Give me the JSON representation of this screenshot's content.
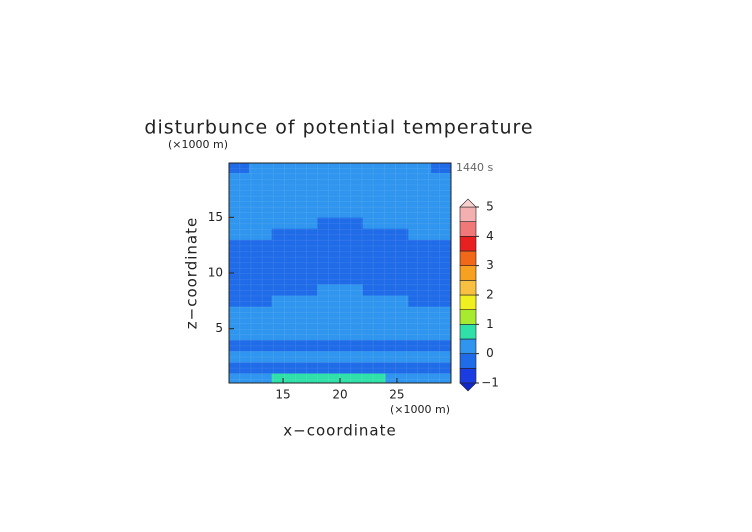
{
  "chart_data": {
    "type": "contour",
    "title": "disturbunce of potential temperature",
    "x_label": "x−coordinate",
    "y_label": "z−coordinate",
    "x_unit": "(×1000 m)",
    "y_unit": "(×1000 m)",
    "time_label": "1440 s",
    "xlim": [
      10.25,
      29.75
    ],
    "ylim": [
      0.125,
      19.875
    ],
    "xticks": [
      15,
      20,
      25
    ],
    "yticks": [
      5,
      10,
      15
    ],
    "x": [
      11,
      13,
      15,
      17,
      19,
      21,
      23,
      25,
      27,
      29
    ],
    "y": [
      0.5,
      1.5,
      2.5,
      3.5,
      4.5,
      5.5,
      6.5,
      7.5,
      8.5,
      9.5,
      10.5,
      11.5,
      12.5,
      13.5,
      14.5,
      15.5,
      16.5,
      17.5,
      18.5,
      19.5
    ],
    "z": [
      [
        0.2,
        0.2,
        0.8,
        0.8,
        0.8,
        0.8,
        0.8,
        0.2,
        0.2,
        0.2
      ],
      [
        -0.2,
        -0.2,
        -0.2,
        -0.2,
        -0.2,
        -0.2,
        -0.2,
        -0.2,
        -0.2,
        -0.2
      ],
      [
        0.2,
        0.2,
        0.2,
        0.2,
        0.2,
        0.2,
        0.2,
        0.2,
        0.2,
        0.2
      ],
      [
        -0.2,
        -0.2,
        -0.2,
        -0.2,
        -0.2,
        -0.2,
        -0.2,
        -0.2,
        -0.2,
        -0.2
      ],
      [
        0.2,
        0.2,
        0.2,
        0.2,
        0.2,
        0.2,
        0.2,
        0.2,
        0.2,
        0.2
      ],
      [
        0.2,
        0.2,
        0.2,
        0.2,
        0.2,
        0.2,
        0.2,
        0.2,
        0.2,
        0.2
      ],
      [
        0.2,
        0.2,
        0.2,
        0.2,
        0.2,
        0.2,
        0.2,
        0.2,
        0.2,
        0.2
      ],
      [
        -0.2,
        -0.2,
        0.2,
        0.2,
        0.2,
        0.2,
        0.2,
        0.2,
        -0.2,
        -0.2
      ],
      [
        -0.2,
        -0.2,
        -0.2,
        -0.2,
        0.2,
        0.2,
        -0.2,
        -0.2,
        -0.2,
        -0.2
      ],
      [
        -0.2,
        -0.2,
        -0.2,
        -0.2,
        -0.2,
        -0.2,
        -0.2,
        -0.2,
        -0.2,
        -0.2
      ],
      [
        -0.2,
        -0.2,
        -0.2,
        -0.2,
        -0.2,
        -0.2,
        -0.2,
        -0.2,
        -0.2,
        -0.2
      ],
      [
        -0.2,
        -0.2,
        -0.2,
        -0.2,
        -0.2,
        -0.2,
        -0.2,
        -0.2,
        -0.2,
        -0.2
      ],
      [
        -0.2,
        -0.2,
        -0.2,
        -0.2,
        -0.2,
        -0.2,
        -0.2,
        -0.2,
        -0.2,
        -0.2
      ],
      [
        0.2,
        0.2,
        -0.2,
        -0.2,
        -0.2,
        -0.2,
        -0.2,
        -0.2,
        0.2,
        0.2
      ],
      [
        0.2,
        0.2,
        0.2,
        0.2,
        -0.2,
        -0.2,
        0.2,
        0.2,
        0.2,
        0.2
      ],
      [
        0.2,
        0.2,
        0.2,
        0.2,
        0.2,
        0.2,
        0.2,
        0.2,
        0.2,
        0.2
      ],
      [
        0.2,
        0.2,
        0.2,
        0.2,
        0.2,
        0.2,
        0.2,
        0.2,
        0.2,
        0.2
      ],
      [
        0.2,
        0.2,
        0.2,
        0.2,
        0.2,
        0.2,
        0.2,
        0.2,
        0.2,
        0.2
      ],
      [
        0.2,
        0.2,
        0.2,
        0.2,
        0.2,
        0.2,
        0.2,
        0.2,
        0.2,
        0.2
      ],
      [
        -0.2,
        0.2,
        0.2,
        0.2,
        0.2,
        0.2,
        0.2,
        0.2,
        0.2,
        -0.2
      ]
    ],
    "levels": [
      -1,
      -0.5,
      0,
      0.5,
      1,
      1.5,
      2,
      2.5,
      3,
      3.5,
      4,
      4.5,
      5
    ],
    "level_colors": [
      "#1a3ce0",
      "#1f6be8",
      "#2f95ee",
      "#2fe0a8",
      "#a8ea30",
      "#f0f020",
      "#f8c040",
      "#f8a020",
      "#f06818",
      "#e82020",
      "#f07878",
      "#f4b0b0"
    ],
    "under_color": "#1028c8",
    "over_color": "#f8d0d0",
    "colorbar_ticks": [
      {
        "value": -1,
        "label": "−1"
      },
      0,
      1,
      2,
      3,
      4,
      5
    ]
  }
}
